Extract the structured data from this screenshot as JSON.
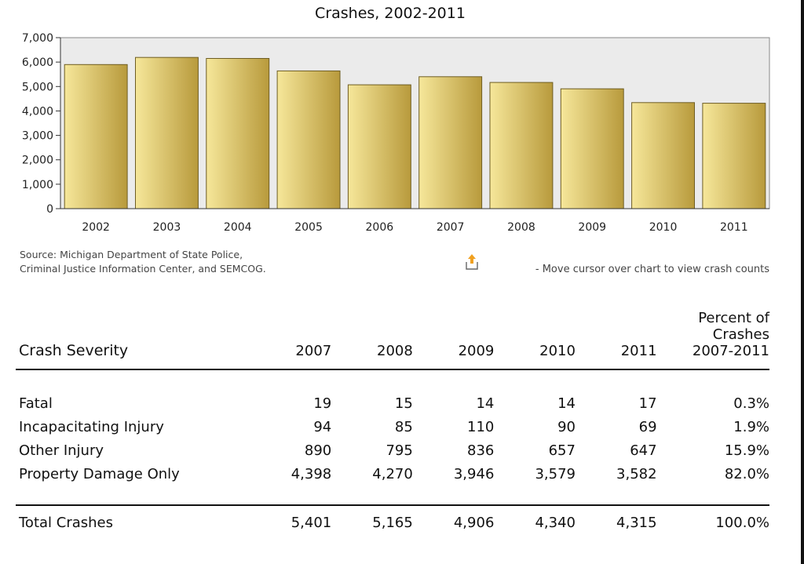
{
  "chart_data": {
    "type": "bar",
    "title": "Crashes, 2002-2011",
    "categories": [
      "2002",
      "2003",
      "2004",
      "2005",
      "2006",
      "2007",
      "2008",
      "2009",
      "2010",
      "2011"
    ],
    "values": [
      5900,
      6190,
      6150,
      5640,
      5070,
      5401,
      5165,
      4906,
      4340,
      4315
    ],
    "ylim": [
      0,
      7000
    ],
    "yticks": [
      "0",
      "1,000",
      "2,000",
      "3,000",
      "4,000",
      "5,000",
      "6,000",
      "7,000"
    ],
    "grid": false,
    "plot_background": "#ebebeb",
    "bar_color_light": "#f6e79a",
    "bar_color_dark": "#b89a3c"
  },
  "source_lines": [
    "Source: Michigan Department of State Police,",
    "Criminal Justice Information Center, and SEMCOG."
  ],
  "hint_text": "- Move cursor over chart to view crash counts",
  "hint_icon": "upload-arrow-icon",
  "table": {
    "header": {
      "label": "Crash Severity",
      "years": [
        "2007",
        "2008",
        "2009",
        "2010",
        "2011"
      ],
      "percent_lines": [
        "Percent of",
        "Crashes",
        "2007-2011"
      ]
    },
    "rows": [
      {
        "label": "Fatal",
        "values": [
          "19",
          "15",
          "14",
          "14",
          "17"
        ],
        "percent": "0.3%"
      },
      {
        "label": "Incapacitating Injury",
        "values": [
          "94",
          "85",
          "110",
          "90",
          "69"
        ],
        "percent": "1.9%"
      },
      {
        "label": "Other Injury",
        "values": [
          "890",
          "795",
          "836",
          "657",
          "647"
        ],
        "percent": "15.9%"
      },
      {
        "label": "Property Damage Only",
        "values": [
          "4,398",
          "4,270",
          "3,946",
          "3,579",
          "3,582"
        ],
        "percent": "82.0%"
      }
    ],
    "total": {
      "label": "Total Crashes",
      "values": [
        "5,401",
        "5,165",
        "4,906",
        "4,340",
        "4,315"
      ],
      "percent": "100.0%"
    }
  }
}
